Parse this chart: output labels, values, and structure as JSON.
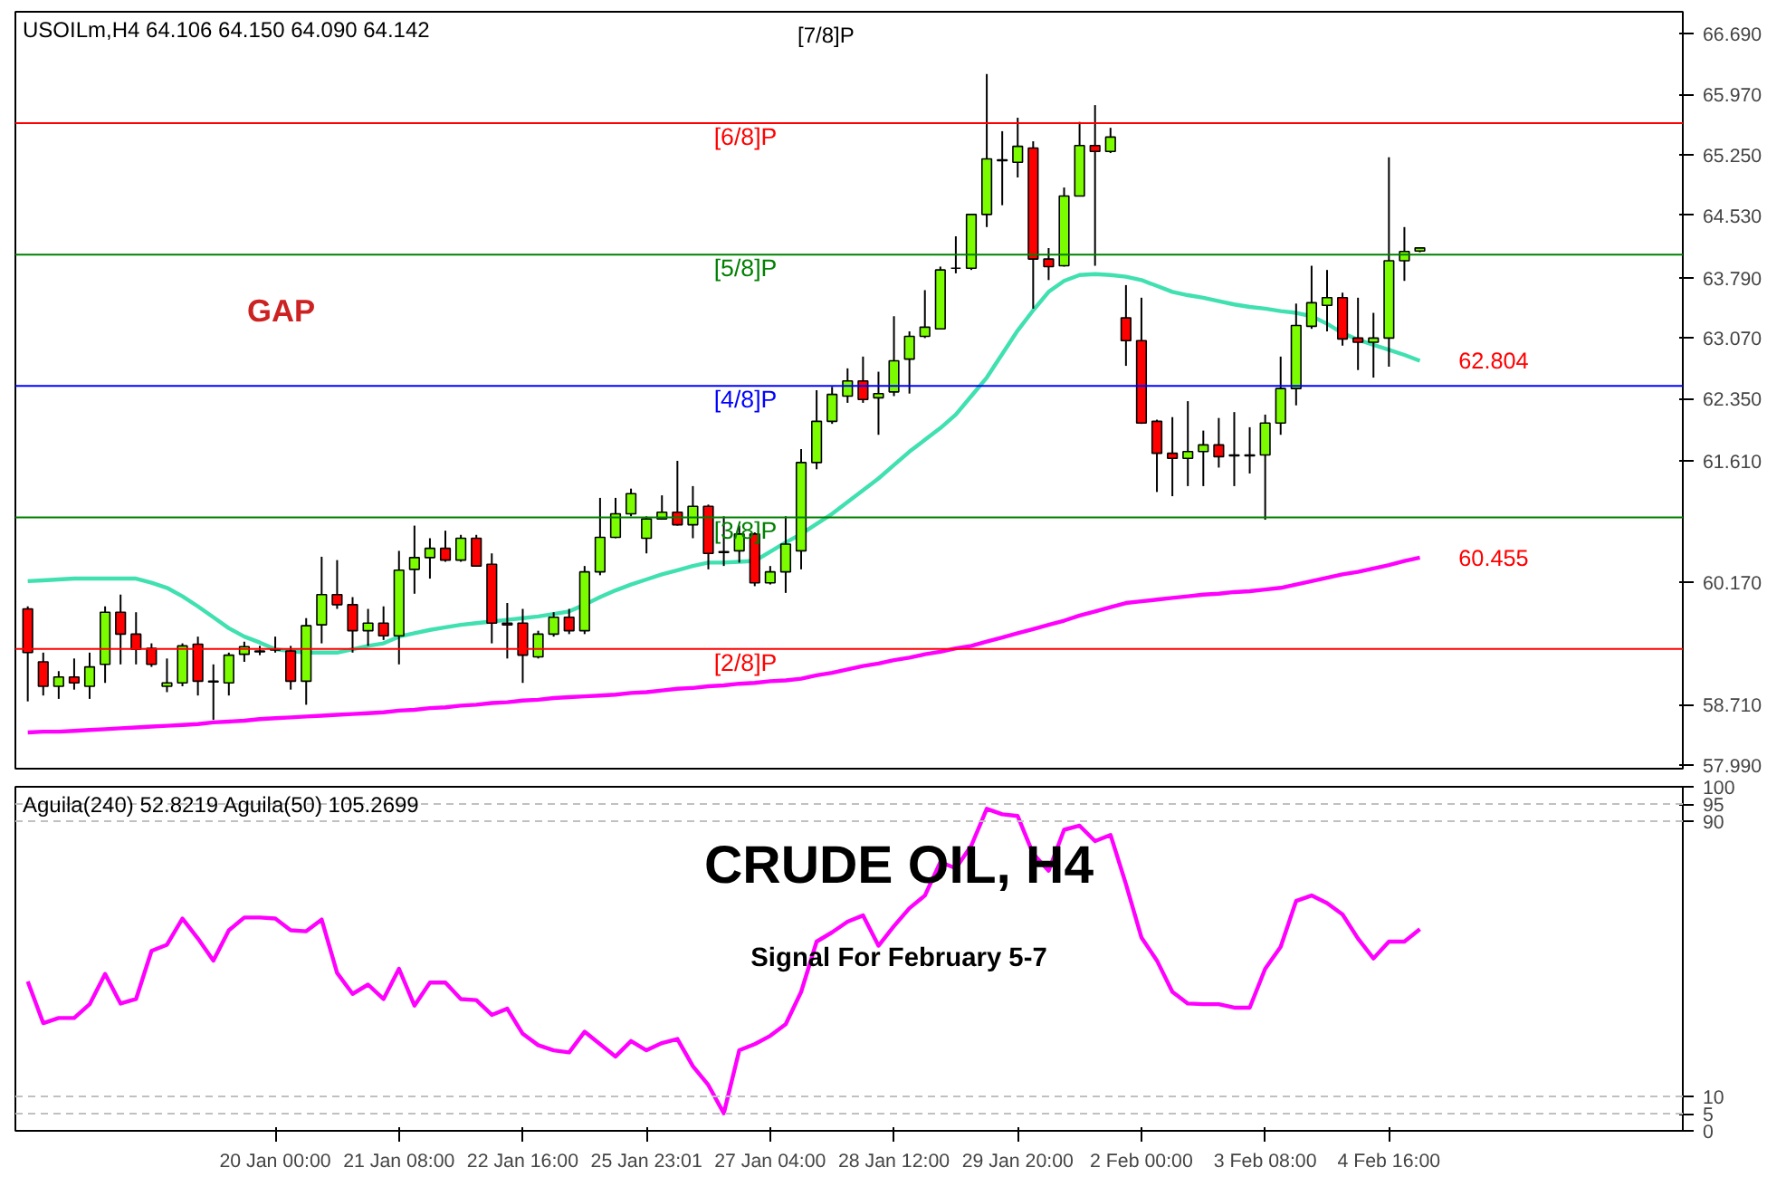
{
  "chart_data": [
    {
      "type": "candlestick",
      "title": "USOILm,H4 64.106 64.150 64.090 64.142",
      "grid": false,
      "categories": [
        null,
        null,
        null,
        null,
        null,
        null,
        null,
        null,
        null,
        null,
        null,
        null,
        null,
        null,
        null,
        null,
        null,
        null,
        null,
        null,
        null,
        null,
        null,
        null,
        null,
        null,
        null,
        null,
        null,
        null,
        null,
        null,
        null,
        null,
        null,
        null,
        null,
        null,
        null,
        null,
        null,
        null,
        null,
        null,
        null,
        null,
        null,
        null,
        null,
        null,
        null,
        null,
        null,
        null,
        null,
        null,
        null,
        null,
        null,
        null,
        null,
        null,
        null,
        null,
        null,
        null,
        null,
        null,
        null,
        null,
        null,
        null,
        null,
        null,
        null,
        null,
        null,
        null,
        null,
        null,
        null,
        null,
        null,
        null,
        null,
        null,
        null,
        null,
        null,
        null,
        null
      ],
      "ohlc": [
        [
          59.85,
          59.88,
          58.75,
          59.33
        ],
        [
          59.22,
          59.33,
          58.82,
          58.93
        ],
        [
          58.93,
          59.11,
          58.78,
          59.04
        ],
        [
          59.04,
          59.26,
          58.89,
          58.97
        ],
        [
          58.93,
          59.33,
          58.78,
          59.16
        ],
        [
          59.19,
          59.88,
          58.97,
          59.81
        ],
        [
          59.81,
          60.02,
          59.19,
          59.55
        ],
        [
          59.55,
          59.81,
          59.19,
          59.37
        ],
        [
          59.38,
          59.44,
          59.16,
          59.19
        ],
        [
          58.93,
          59.26,
          58.86,
          58.97
        ],
        [
          58.97,
          59.44,
          58.93,
          59.41
        ],
        [
          59.43,
          59.52,
          58.82,
          58.99
        ],
        [
          58.99,
          59.19,
          58.53,
          58.98
        ],
        [
          58.97,
          59.33,
          58.82,
          59.3
        ],
        [
          59.31,
          59.46,
          59.22,
          59.4
        ],
        [
          59.35,
          59.41,
          59.3,
          59.34
        ],
        [
          59.37,
          59.52,
          59.33,
          59.36
        ],
        [
          59.35,
          59.41,
          58.89,
          58.99
        ],
        [
          58.99,
          59.74,
          58.71,
          59.65
        ],
        [
          59.66,
          60.47,
          59.44,
          60.02
        ],
        [
          60.02,
          60.43,
          59.85,
          59.9
        ],
        [
          59.9,
          59.99,
          59.33,
          59.59
        ],
        [
          59.59,
          59.85,
          59.41,
          59.68
        ],
        [
          59.68,
          59.88,
          59.48,
          59.53
        ],
        [
          59.53,
          60.54,
          59.19,
          60.31
        ],
        [
          60.32,
          60.84,
          60.03,
          60.46
        ],
        [
          60.46,
          60.69,
          60.21,
          60.57
        ],
        [
          60.57,
          60.78,
          60.41,
          60.43
        ],
        [
          60.43,
          60.73,
          60.41,
          60.69
        ],
        [
          60.69,
          60.73,
          60.36,
          60.36
        ],
        [
          60.38,
          60.51,
          59.44,
          59.68
        ],
        [
          59.68,
          59.92,
          59.26,
          59.66
        ],
        [
          59.68,
          59.85,
          58.97,
          59.3
        ],
        [
          59.28,
          59.59,
          59.26,
          59.55
        ],
        [
          59.55,
          59.81,
          59.52,
          59.75
        ],
        [
          59.75,
          59.85,
          59.55,
          59.59
        ],
        [
          59.59,
          60.36,
          59.55,
          60.29
        ],
        [
          60.29,
          61.17,
          60.25,
          60.7
        ],
        [
          60.7,
          61.17,
          60.69,
          60.98
        ],
        [
          60.98,
          61.28,
          60.95,
          61.22
        ],
        [
          60.69,
          60.95,
          60.51,
          60.92
        ],
        [
          60.92,
          61.2,
          60.91,
          61.0
        ],
        [
          61.0,
          61.61,
          60.84,
          60.85
        ],
        [
          60.85,
          61.31,
          60.69,
          61.07
        ],
        [
          61.07,
          61.09,
          60.32,
          60.51
        ],
        [
          60.53,
          60.95,
          60.36,
          60.52
        ],
        [
          60.54,
          60.84,
          60.4,
          60.74
        ],
        [
          60.74,
          60.76,
          60.12,
          60.16
        ],
        [
          60.16,
          60.36,
          60.14,
          60.29
        ],
        [
          60.29,
          60.95,
          60.04,
          60.62
        ],
        [
          60.54,
          61.75,
          60.32,
          61.59
        ],
        [
          61.59,
          62.45,
          61.51,
          62.08
        ],
        [
          62.08,
          62.49,
          62.05,
          62.4
        ],
        [
          62.38,
          62.71,
          62.3,
          62.56
        ],
        [
          62.56,
          62.85,
          62.3,
          62.34
        ],
        [
          62.36,
          62.67,
          61.92,
          62.41
        ],
        [
          62.43,
          63.33,
          62.38,
          62.8
        ],
        [
          62.82,
          63.15,
          62.41,
          63.09
        ],
        [
          63.09,
          63.64,
          63.07,
          63.2
        ],
        [
          63.18,
          63.92,
          63.18,
          63.88
        ],
        [
          63.9,
          64.28,
          63.84,
          63.9
        ],
        [
          63.9,
          64.54,
          63.88,
          64.54
        ],
        [
          64.54,
          66.21,
          64.39,
          65.2
        ],
        [
          65.19,
          65.53,
          64.65,
          65.18
        ],
        [
          65.16,
          65.69,
          64.98,
          65.35
        ],
        [
          65.33,
          65.41,
          63.42,
          64.01
        ],
        [
          64.01,
          64.14,
          63.76,
          63.92
        ],
        [
          63.93,
          64.86,
          63.92,
          64.76
        ],
        [
          64.76,
          65.64,
          64.76,
          65.36
        ],
        [
          65.36,
          65.84,
          63.93,
          65.29
        ],
        [
          65.29,
          65.57,
          65.27,
          65.46
        ],
        [
          63.31,
          63.7,
          62.74,
          63.04
        ],
        [
          63.04,
          63.55,
          62.05,
          62.06
        ],
        [
          62.08,
          62.1,
          61.24,
          61.7
        ],
        [
          61.7,
          62.13,
          61.19,
          61.64
        ],
        [
          61.64,
          62.32,
          61.31,
          61.72
        ],
        [
          61.72,
          61.97,
          61.31,
          61.8
        ],
        [
          61.8,
          62.12,
          61.53,
          61.66
        ],
        [
          61.68,
          62.19,
          61.31,
          61.67
        ],
        [
          61.68,
          62.01,
          61.46,
          61.67
        ],
        [
          61.68,
          62.16,
          60.91,
          62.06
        ],
        [
          62.06,
          62.85,
          61.92,
          62.47
        ],
        [
          62.47,
          63.48,
          62.27,
          63.22
        ],
        [
          63.21,
          63.93,
          63.18,
          63.49
        ],
        [
          63.46,
          63.88,
          63.15,
          63.55
        ],
        [
          63.55,
          63.61,
          62.98,
          63.06
        ],
        [
          63.07,
          63.55,
          62.69,
          63.02
        ],
        [
          63.02,
          63.37,
          62.6,
          63.07
        ],
        [
          63.07,
          65.22,
          62.73,
          63.99
        ],
        [
          63.99,
          64.39,
          63.75,
          64.1
        ],
        [
          64.106,
          64.15,
          64.09,
          64.142
        ]
      ],
      "series": [
        {
          "type": "line",
          "color": "#40e0b0",
          "values": [
            60.18,
            60.19,
            60.2,
            60.21,
            60.21,
            60.21,
            60.21,
            60.21,
            60.16,
            60.1,
            60.0,
            59.88,
            59.75,
            59.62,
            59.52,
            59.45,
            59.37,
            59.35,
            59.33,
            59.33,
            59.33,
            59.37,
            59.41,
            59.44,
            59.52,
            59.56,
            59.6,
            59.63,
            59.66,
            59.68,
            59.7,
            59.72,
            59.74,
            59.76,
            59.79,
            59.82,
            59.9,
            59.99,
            60.07,
            60.14,
            60.2,
            60.26,
            60.31,
            60.36,
            60.4,
            60.4,
            60.41,
            60.42,
            60.53,
            60.64,
            60.74,
            60.86,
            60.98,
            61.12,
            61.26,
            61.4,
            61.56,
            61.72,
            61.86,
            62.0,
            62.16,
            62.38,
            62.6,
            62.88,
            63.16,
            63.4,
            63.62,
            63.75,
            63.82,
            63.83,
            63.82,
            63.8,
            63.76,
            63.69,
            63.62,
            63.58,
            63.55,
            63.51,
            63.47,
            63.44,
            63.42,
            63.39,
            63.37,
            63.33,
            63.24,
            63.13,
            63.05,
            62.99,
            62.93,
            62.87,
            62.8
          ]
        },
        {
          "type": "line",
          "color": "#ff00ff",
          "values": [
            58.38,
            58.39,
            58.39,
            58.4,
            58.41,
            58.42,
            58.43,
            58.44,
            58.45,
            58.46,
            58.47,
            58.48,
            58.5,
            58.51,
            58.52,
            58.54,
            58.55,
            58.56,
            58.57,
            58.58,
            58.59,
            58.6,
            58.61,
            58.62,
            58.64,
            58.65,
            58.67,
            58.68,
            58.7,
            58.71,
            58.73,
            58.74,
            58.76,
            58.77,
            58.79,
            58.8,
            58.81,
            58.82,
            58.83,
            58.85,
            58.86,
            58.88,
            58.9,
            58.91,
            58.93,
            58.94,
            58.96,
            58.97,
            58.99,
            59.0,
            59.02,
            59.06,
            59.09,
            59.13,
            59.17,
            59.2,
            59.24,
            59.27,
            59.31,
            59.34,
            59.38,
            59.41,
            59.46,
            59.51,
            59.56,
            59.61,
            59.66,
            59.71,
            59.77,
            59.82,
            59.87,
            59.92,
            59.94,
            59.96,
            59.98,
            60.0,
            60.02,
            60.03,
            60.05,
            60.06,
            60.08,
            60.1,
            60.14,
            60.18,
            60.22,
            60.26,
            60.29,
            60.33,
            60.37,
            60.42,
            60.46
          ]
        }
      ],
      "ylim": [
        57.95,
        66.95
      ],
      "yticks": [
        {
          "value": 57.99,
          "label": "57.990"
        },
        {
          "value": 58.71,
          "label": "58.710"
        },
        {
          "value": 60.17,
          "label": "60.170"
        },
        {
          "value": 61.61,
          "label": "61.610"
        },
        {
          "value": 62.35,
          "label": "62.350"
        },
        {
          "value": 63.07,
          "label": "63.070"
        },
        {
          "value": 63.79,
          "label": "63.790"
        },
        {
          "value": 64.53,
          "label": "64.530"
        },
        {
          "value": 65.25,
          "label": "65.250"
        },
        {
          "value": 65.97,
          "label": "65.970"
        },
        {
          "value": 66.69,
          "label": "66.690"
        }
      ],
      "ref_lines": [
        {
          "axis": "y",
          "value": 65.625,
          "label": "[6/8]P",
          "color": "#ff0000"
        },
        {
          "axis": "y",
          "value": 64.062,
          "label": "[5/8]P",
          "color": "#008000"
        },
        {
          "axis": "y",
          "value": 62.5,
          "label": "[4/8]P",
          "color": "#0000ff"
        },
        {
          "axis": "y",
          "value": 60.938,
          "label": "[3/8]P",
          "color": "#008000"
        },
        {
          "axis": "y",
          "value": 59.375,
          "label": "[2/8]P",
          "color": "#ff0000"
        }
      ],
      "annotations": [
        "GAP",
        "[7/8]P",
        "62.804",
        "60.455"
      ]
    },
    {
      "type": "line",
      "title": "Aguila(240) 52.8219 Aguila(50) 105.2699",
      "grid": false,
      "categories": [
        null,
        null,
        null,
        null,
        null,
        null,
        null,
        null,
        null,
        null,
        null,
        null,
        null,
        null,
        null,
        null,
        "20 Jan 00:00",
        null,
        null,
        null,
        null,
        null,
        null,
        null,
        "21 Jan 08:00",
        null,
        null,
        null,
        null,
        null,
        null,
        null,
        "22 Jan 16:00",
        null,
        null,
        null,
        null,
        null,
        null,
        null,
        "25 Jan 23:01",
        null,
        null,
        null,
        null,
        null,
        null,
        null,
        "27 Jan 04:00",
        null,
        null,
        null,
        null,
        null,
        null,
        null,
        "28 Jan 12:00",
        null,
        null,
        null,
        null,
        null,
        null,
        null,
        "29 Jan 20:00",
        null,
        null,
        null,
        null,
        null,
        null,
        null,
        "2 Feb 00:00",
        null,
        null,
        null,
        null,
        null,
        null,
        null,
        "3 Feb 08:00",
        null,
        null,
        null,
        null,
        null,
        null,
        null,
        "4 Feb 16:00",
        null,
        null
      ],
      "series": [
        {
          "color": "#ff00ff",
          "values": [
            43.4,
            31.3,
            32.8,
            32.8,
            36.8,
            45.6,
            37.0,
            38.3,
            52.3,
            54.1,
            61.7,
            55.9,
            49.5,
            58.3,
            62.0,
            62.0,
            61.7,
            58.3,
            58.0,
            61.4,
            45.9,
            39.8,
            42.5,
            38.3,
            47.1,
            36.4,
            43.1,
            43.1,
            38.3,
            38.0,
            33.7,
            35.5,
            28.2,
            24.9,
            23.4,
            22.8,
            28.8,
            25.2,
            21.6,
            26.1,
            23.4,
            25.5,
            26.7,
            18.8,
            13.3,
            5.1,
            23.4,
            25.2,
            27.6,
            31.0,
            40.4,
            55.0,
            57.7,
            60.8,
            62.6,
            53.8,
            59.5,
            64.7,
            68.4,
            78.1,
            76.3,
            82.9,
            93.6,
            92.0,
            91.5,
            80.5,
            75.6,
            87.5,
            88.7,
            84.2,
            86.0,
            71.7,
            56.2,
            49.5,
            40.4,
            37.0,
            36.8,
            36.8,
            35.8,
            35.8,
            47.1,
            53.5,
            66.8,
            68.4,
            66.2,
            62.9,
            55.9,
            50.1,
            55.0,
            55.0,
            58.6
          ]
        }
      ],
      "ylim": [
        0,
        100
      ],
      "yticks": [
        0,
        5,
        10,
        90,
        95,
        100
      ],
      "ref_lines": [
        {
          "axis": "y",
          "value": 5,
          "color": "#c0c0c0",
          "line_style": "dashed"
        },
        {
          "axis": "y",
          "value": 10,
          "color": "#c0c0c0",
          "line_style": "dashed"
        },
        {
          "axis": "y",
          "value": 90,
          "color": "#c0c0c0",
          "line_style": "dashed"
        },
        {
          "axis": "y",
          "value": 95,
          "color": "#c0c0c0",
          "line_style": "dashed"
        }
      ],
      "annotations": [
        "CRUDE OIL, H4",
        "Signal For February 5-7"
      ]
    }
  ]
}
